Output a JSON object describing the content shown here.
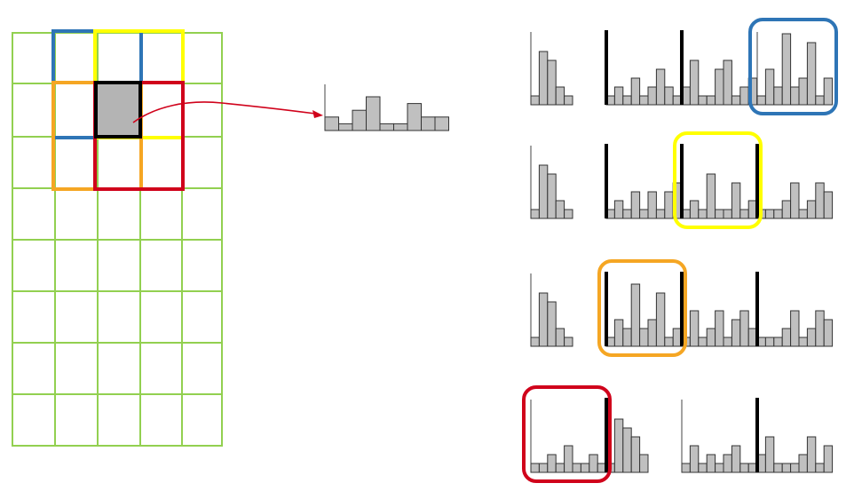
{
  "colors": {
    "grid_line": "#92d050",
    "blue_block": "#2e75b6",
    "yellow_block": "#ffff00",
    "orange_block": "#f5a623",
    "red_block": "#d0021b",
    "center_cell_fill": "#b4b4b4",
    "center_cell_border": "#000000",
    "bar_fill": "#c0c0c0",
    "bar_stroke": "#333333",
    "arrow": "#d0021b",
    "separator": "#000000"
  },
  "cell_histogram": [
    2,
    1,
    3,
    5,
    1,
    1,
    4,
    2,
    2
  ],
  "hist_rows": [
    {
      "name": "blue-row",
      "highlight": "blue_block",
      "highlight_segment": 3,
      "segments": [
        [
          1,
          6,
          5,
          2,
          1,
          0,
          0,
          0,
          0
        ],
        [
          1,
          2,
          1,
          3,
          1,
          2,
          4,
          2,
          1
        ],
        [
          2,
          5,
          1,
          1,
          4,
          5,
          1,
          2,
          3
        ],
        [
          1,
          4,
          2,
          8,
          2,
          3,
          7,
          1,
          3
        ]
      ],
      "separators": [
        1,
        2
      ]
    },
    {
      "name": "yellow-row",
      "highlight": "yellow_block",
      "highlight_segment": 2,
      "segments": [
        [
          1,
          6,
          5,
          2,
          1,
          0,
          0,
          0,
          0
        ],
        [
          1,
          2,
          1,
          3,
          1,
          3,
          1,
          3,
          4
        ],
        [
          1,
          2,
          1,
          5,
          1,
          1,
          4,
          1,
          2
        ],
        [
          1,
          1,
          1,
          2,
          4,
          1,
          2,
          4,
          3
        ]
      ],
      "separators": [
        1,
        2,
        3
      ]
    },
    {
      "name": "orange-row",
      "highlight": "orange_block",
      "highlight_segment": 1,
      "segments": [
        [
          1,
          6,
          5,
          2,
          1,
          0,
          0,
          0,
          0
        ],
        [
          1,
          3,
          2,
          7,
          2,
          3,
          6,
          1,
          2
        ],
        [
          1,
          4,
          1,
          2,
          4,
          1,
          3,
          4,
          2
        ],
        [
          1,
          1,
          1,
          2,
          4,
          1,
          2,
          4,
          3
        ]
      ],
      "separators": [
        1,
        2,
        3
      ]
    },
    {
      "name": "red-row",
      "highlight": "red_block",
      "highlight_segment": 0,
      "segments": [
        [
          1,
          1,
          2,
          1,
          3,
          1,
          1,
          2,
          1
        ],
        [
          1,
          6,
          5,
          4,
          2,
          0,
          0,
          0,
          0
        ],
        [
          1,
          3,
          1,
          2,
          1,
          2,
          3,
          1,
          1
        ],
        [
          2,
          4,
          1,
          1,
          1,
          2,
          4,
          1,
          3
        ]
      ],
      "separators": [
        1,
        3
      ]
    }
  ]
}
